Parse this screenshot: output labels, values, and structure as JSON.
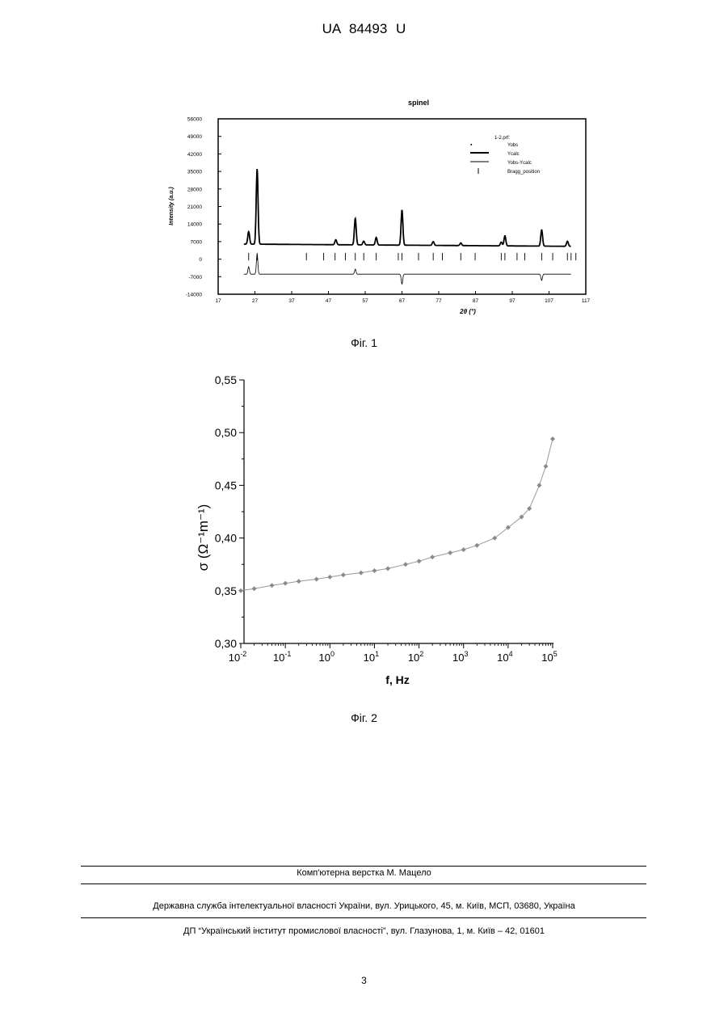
{
  "header": {
    "patent_number": "UA   84493   U"
  },
  "figures": [
    {
      "caption": "Фіг. 1"
    },
    {
      "caption": "Фіг. 2"
    }
  ],
  "chart_data": [
    {
      "type": "line",
      "title": "spinel",
      "xlabel": "2θ (°)",
      "ylabel": "Intensity (a.u.)",
      "xlim": [
        17,
        117
      ],
      "ylim": [
        -14000,
        56000
      ],
      "x_ticks": [
        "17",
        "27",
        "37",
        "47",
        "57",
        "67",
        "77",
        "87",
        "97",
        "107",
        "117"
      ],
      "y_ticks": [
        "56000",
        "49000",
        "42000",
        "35000",
        "28000",
        "21000",
        "14000",
        "7000",
        "0",
        "-7000",
        "-14000"
      ],
      "legend": {
        "placement": "top-right",
        "title": "1-2.prf:",
        "entries": [
          "Yobs",
          "Ycalc",
          "Yobs-Ycalc",
          "Bragg_position"
        ]
      },
      "background_level": 6000,
      "peaks": [
        {
          "x": 25.3,
          "y": 11000
        },
        {
          "x": 27.6,
          "y": 36000
        },
        {
          "x": 49.0,
          "y": 8000
        },
        {
          "x": 54.3,
          "y": 16500
        },
        {
          "x": 56.6,
          "y": 7500
        },
        {
          "x": 60.0,
          "y": 9000
        },
        {
          "x": 67.0,
          "y": 20000
        },
        {
          "x": 75.5,
          "y": 7500
        },
        {
          "x": 83.0,
          "y": 7000
        },
        {
          "x": 94.0,
          "y": 7500
        },
        {
          "x": 95.0,
          "y": 10000
        },
        {
          "x": 105.0,
          "y": 12500
        },
        {
          "x": 112.0,
          "y": 8000
        }
      ],
      "bragg_positions": [
        25.3,
        27.6,
        41.0,
        45.7,
        48.8,
        51.6,
        54.3,
        56.6,
        60.0,
        66.0,
        67.0,
        71.5,
        75.5,
        78.0,
        83.0,
        86.9,
        94.0,
        95.0,
        98.3,
        100.4,
        105.0,
        108.0,
        112.0,
        113.0,
        114.3
      ],
      "difference_baseline": -6000,
      "difference_features": [
        {
          "x": 25.3,
          "y": -3000
        },
        {
          "x": 27.6,
          "y": 2000
        },
        {
          "x": 54.3,
          "y": -4000
        },
        {
          "x": 67.0,
          "y": -10000
        },
        {
          "x": 105.0,
          "y": -8500
        }
      ]
    },
    {
      "type": "line",
      "xlabel": "f, Hz",
      "ylabel": "σ (Ω⁻¹m⁻¹)",
      "x_scale": "log",
      "xlim": [
        0.01,
        100000
      ],
      "ylim": [
        0.3,
        0.55
      ],
      "x_ticks": [
        {
          "base": "10",
          "exp": "-2"
        },
        {
          "base": "10",
          "exp": "-1"
        },
        {
          "base": "10",
          "exp": "0"
        },
        {
          "base": "10",
          "exp": "1"
        },
        {
          "base": "10",
          "exp": "2"
        },
        {
          "base": "10",
          "exp": "3"
        },
        {
          "base": "10",
          "exp": "4"
        },
        {
          "base": "10",
          "exp": "5"
        }
      ],
      "y_ticks": [
        "0,55",
        "0,50",
        "0,45",
        "0,40",
        "0,35",
        "0,30"
      ],
      "x": [
        0.01,
        0.02,
        0.05,
        0.1,
        0.2,
        0.5,
        1,
        2,
        5,
        10,
        20,
        50,
        100,
        200,
        500,
        1000,
        2000,
        5000,
        10000,
        20000,
        30000,
        50000,
        70000,
        100000
      ],
      "y": [
        0.35,
        0.352,
        0.355,
        0.357,
        0.359,
        0.361,
        0.363,
        0.365,
        0.367,
        0.369,
        0.371,
        0.375,
        0.378,
        0.382,
        0.386,
        0.389,
        0.393,
        0.4,
        0.41,
        0.42,
        0.428,
        0.45,
        0.468,
        0.494
      ]
    }
  ],
  "footer": {
    "layout": "Комп'ютерна верстка М. Мацело",
    "office": "Державна служба інтелектуальної власності України, вул. Урицького, 45, м. Київ, МСП, 03680, Україна",
    "institute": "ДП “Український інститут промислової власності”, вул. Глазунова, 1, м. Київ – 42, 01601",
    "page_number": "3"
  }
}
